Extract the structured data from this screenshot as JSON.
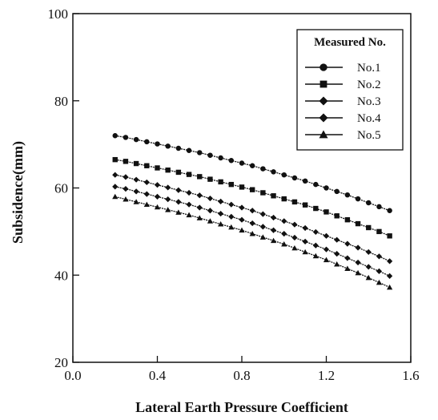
{
  "chart_data": {
    "type": "line",
    "xlabel": "Lateral Earth Pressure Coefficient",
    "ylabel": "Subsidence(mm)",
    "xlim": [
      0.0,
      1.6
    ],
    "ylim": [
      20,
      100
    ],
    "xticks": [
      "0.0",
      "0.4",
      "0.8",
      "1.2",
      "1.6"
    ],
    "yticks": [
      "20",
      "40",
      "60",
      "80",
      "100"
    ],
    "grid": false,
    "legend": {
      "title": "Measured No.",
      "position": "top-right"
    },
    "x": [
      0.2,
      0.25,
      0.3,
      0.35,
      0.4,
      0.45,
      0.5,
      0.55,
      0.6,
      0.65,
      0.7,
      0.75,
      0.8,
      0.85,
      0.9,
      0.95,
      1.0,
      1.05,
      1.1,
      1.15,
      1.2,
      1.25,
      1.3,
      1.35,
      1.4,
      1.45,
      1.5
    ],
    "series": [
      {
        "name": "No.1",
        "marker": "circle",
        "values": [
          72.0,
          71.6,
          71.1,
          70.6,
          70.1,
          69.6,
          69.1,
          68.6,
          68.1,
          67.5,
          66.9,
          66.3,
          65.7,
          65.1,
          64.4,
          63.7,
          63.0,
          62.3,
          61.6,
          60.8,
          60.0,
          59.2,
          58.4,
          57.5,
          56.6,
          55.7,
          54.8
        ]
      },
      {
        "name": "No.2",
        "marker": "square",
        "values": [
          66.5,
          66.1,
          65.6,
          65.1,
          64.6,
          64.1,
          63.6,
          63.1,
          62.6,
          62.0,
          61.4,
          60.8,
          60.2,
          59.6,
          58.9,
          58.2,
          57.5,
          56.8,
          56.1,
          55.3,
          54.5,
          53.6,
          52.7,
          51.8,
          50.9,
          50.0,
          49.0
        ]
      },
      {
        "name": "No.3",
        "marker": "diamond",
        "values": [
          63.0,
          62.5,
          61.9,
          61.3,
          60.7,
          60.1,
          59.5,
          58.9,
          58.3,
          57.6,
          56.9,
          56.2,
          55.5,
          54.8,
          54.0,
          53.2,
          52.4,
          51.6,
          50.8,
          49.9,
          49.0,
          48.1,
          47.2,
          46.3,
          45.3,
          44.3,
          43.2
        ]
      },
      {
        "name": "No.4",
        "marker": "diamond",
        "values": [
          60.3,
          59.8,
          59.2,
          58.6,
          58.0,
          57.4,
          56.8,
          56.2,
          55.5,
          54.8,
          54.1,
          53.4,
          52.7,
          51.9,
          51.1,
          50.3,
          49.5,
          48.6,
          47.7,
          46.8,
          45.9,
          44.9,
          43.9,
          42.9,
          41.9,
          40.9,
          39.8
        ]
      },
      {
        "name": "No.5",
        "marker": "triangle",
        "values": [
          58.0,
          57.4,
          56.8,
          56.2,
          55.6,
          55.0,
          54.4,
          53.8,
          53.1,
          52.4,
          51.7,
          51.0,
          50.3,
          49.5,
          48.7,
          47.9,
          47.1,
          46.2,
          45.3,
          44.4,
          43.5,
          42.5,
          41.5,
          40.5,
          39.4,
          38.3,
          37.2
        ]
      }
    ]
  }
}
